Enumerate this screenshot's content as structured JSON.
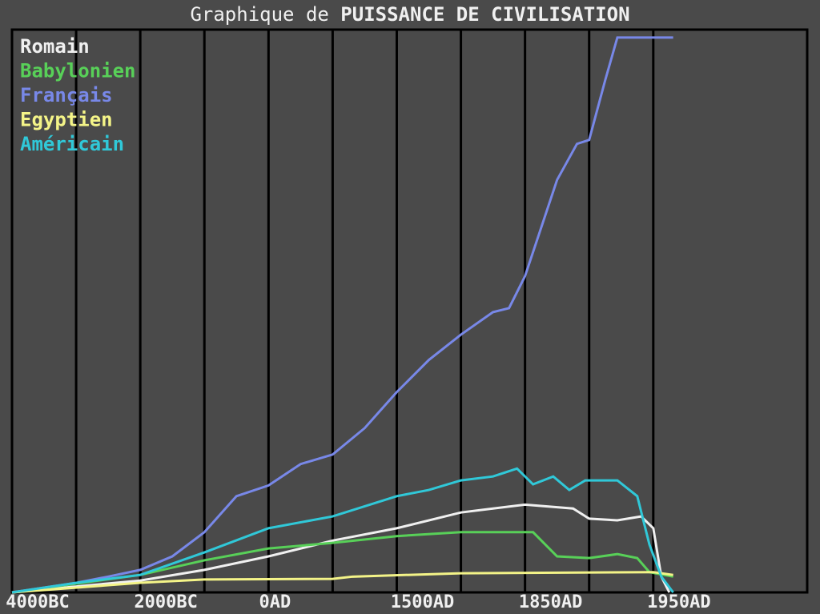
{
  "chart_data": {
    "type": "line",
    "title": "Graphique de",
    "title_emphasis": "PUISSANCE DE CIVILISATION",
    "xlim": [
      0,
      124
    ],
    "ylim": [
      0,
      100
    ],
    "xticks": [
      {
        "value": 4,
        "label": "4000BC"
      },
      {
        "value": 24,
        "label": "2000BC"
      },
      {
        "value": 41,
        "label": "0AD"
      },
      {
        "value": 64,
        "label": "1500AD"
      },
      {
        "value": 84,
        "label": "1850AD"
      },
      {
        "value": 104,
        "label": "1950AD"
      }
    ],
    "xgrid": [
      10,
      20,
      30,
      40,
      50,
      60,
      70,
      80,
      90,
      100
    ],
    "legend": "top-left",
    "series": [
      {
        "name": "Romain",
        "color": "#f0f0f0",
        "x": [
          0,
          20,
          30,
          40,
          50,
          60,
          70,
          80,
          87.5,
          90,
          94.4,
          98.1,
          100,
          101.25,
          102.5
        ],
        "values": [
          0,
          2.1,
          4.0,
          6.4,
          9.2,
          11.4,
          14.2,
          15.6,
          14.9,
          13.1,
          12.8,
          13.5,
          11.4,
          2.8,
          0
        ]
      },
      {
        "name": "Babylonien",
        "color": "#58d058",
        "x": [
          0,
          20,
          30,
          40,
          50,
          60,
          70,
          81.25,
          85,
          90,
          94.4,
          97.5,
          99.4,
          103.1
        ],
        "values": [
          0,
          3.1,
          5.7,
          7.8,
          8.8,
          10.0,
          10.7,
          10.7,
          6.4,
          6.1,
          6.8,
          6.1,
          3.6,
          2.8
        ]
      },
      {
        "name": "Français",
        "color": "#7888e8",
        "x": [
          0,
          10,
          15,
          20,
          25,
          30,
          35,
          40,
          45,
          50,
          55,
          60,
          65,
          70,
          75,
          77.5,
          80,
          85,
          88.1,
          90,
          92.5,
          94.4,
          103.1
        ],
        "values": [
          0,
          1.7,
          2.8,
          4.0,
          6.4,
          10.7,
          17.1,
          19.0,
          22.8,
          24.5,
          29.2,
          35.6,
          41.3,
          45.8,
          49.8,
          50.5,
          56.2,
          73.3,
          79.7,
          80.4,
          91.0,
          98.6,
          98.6
        ]
      },
      {
        "name": "Egyptien",
        "color": "#f4f488",
        "x": [
          0,
          20,
          30,
          50,
          53.1,
          70,
          100,
          103.1
        ],
        "values": [
          0,
          1.7,
          2.3,
          2.4,
          2.8,
          3.4,
          3.6,
          3.1
        ]
      },
      {
        "name": "Américain",
        "color": "#30c8d8",
        "x": [
          0,
          10,
          20,
          30,
          40,
          50,
          60,
          65,
          70,
          75,
          78.75,
          81.25,
          84.4,
          86.9,
          89.4,
          94.4,
          97.5,
          99.4,
          101.25,
          103.1
        ],
        "values": [
          0,
          1.7,
          3.1,
          7.1,
          11.4,
          13.5,
          17.1,
          18.2,
          19.9,
          20.6,
          22.0,
          19.2,
          20.6,
          18.2,
          19.9,
          19.9,
          17.1,
          8.5,
          2.8,
          0
        ]
      }
    ]
  }
}
